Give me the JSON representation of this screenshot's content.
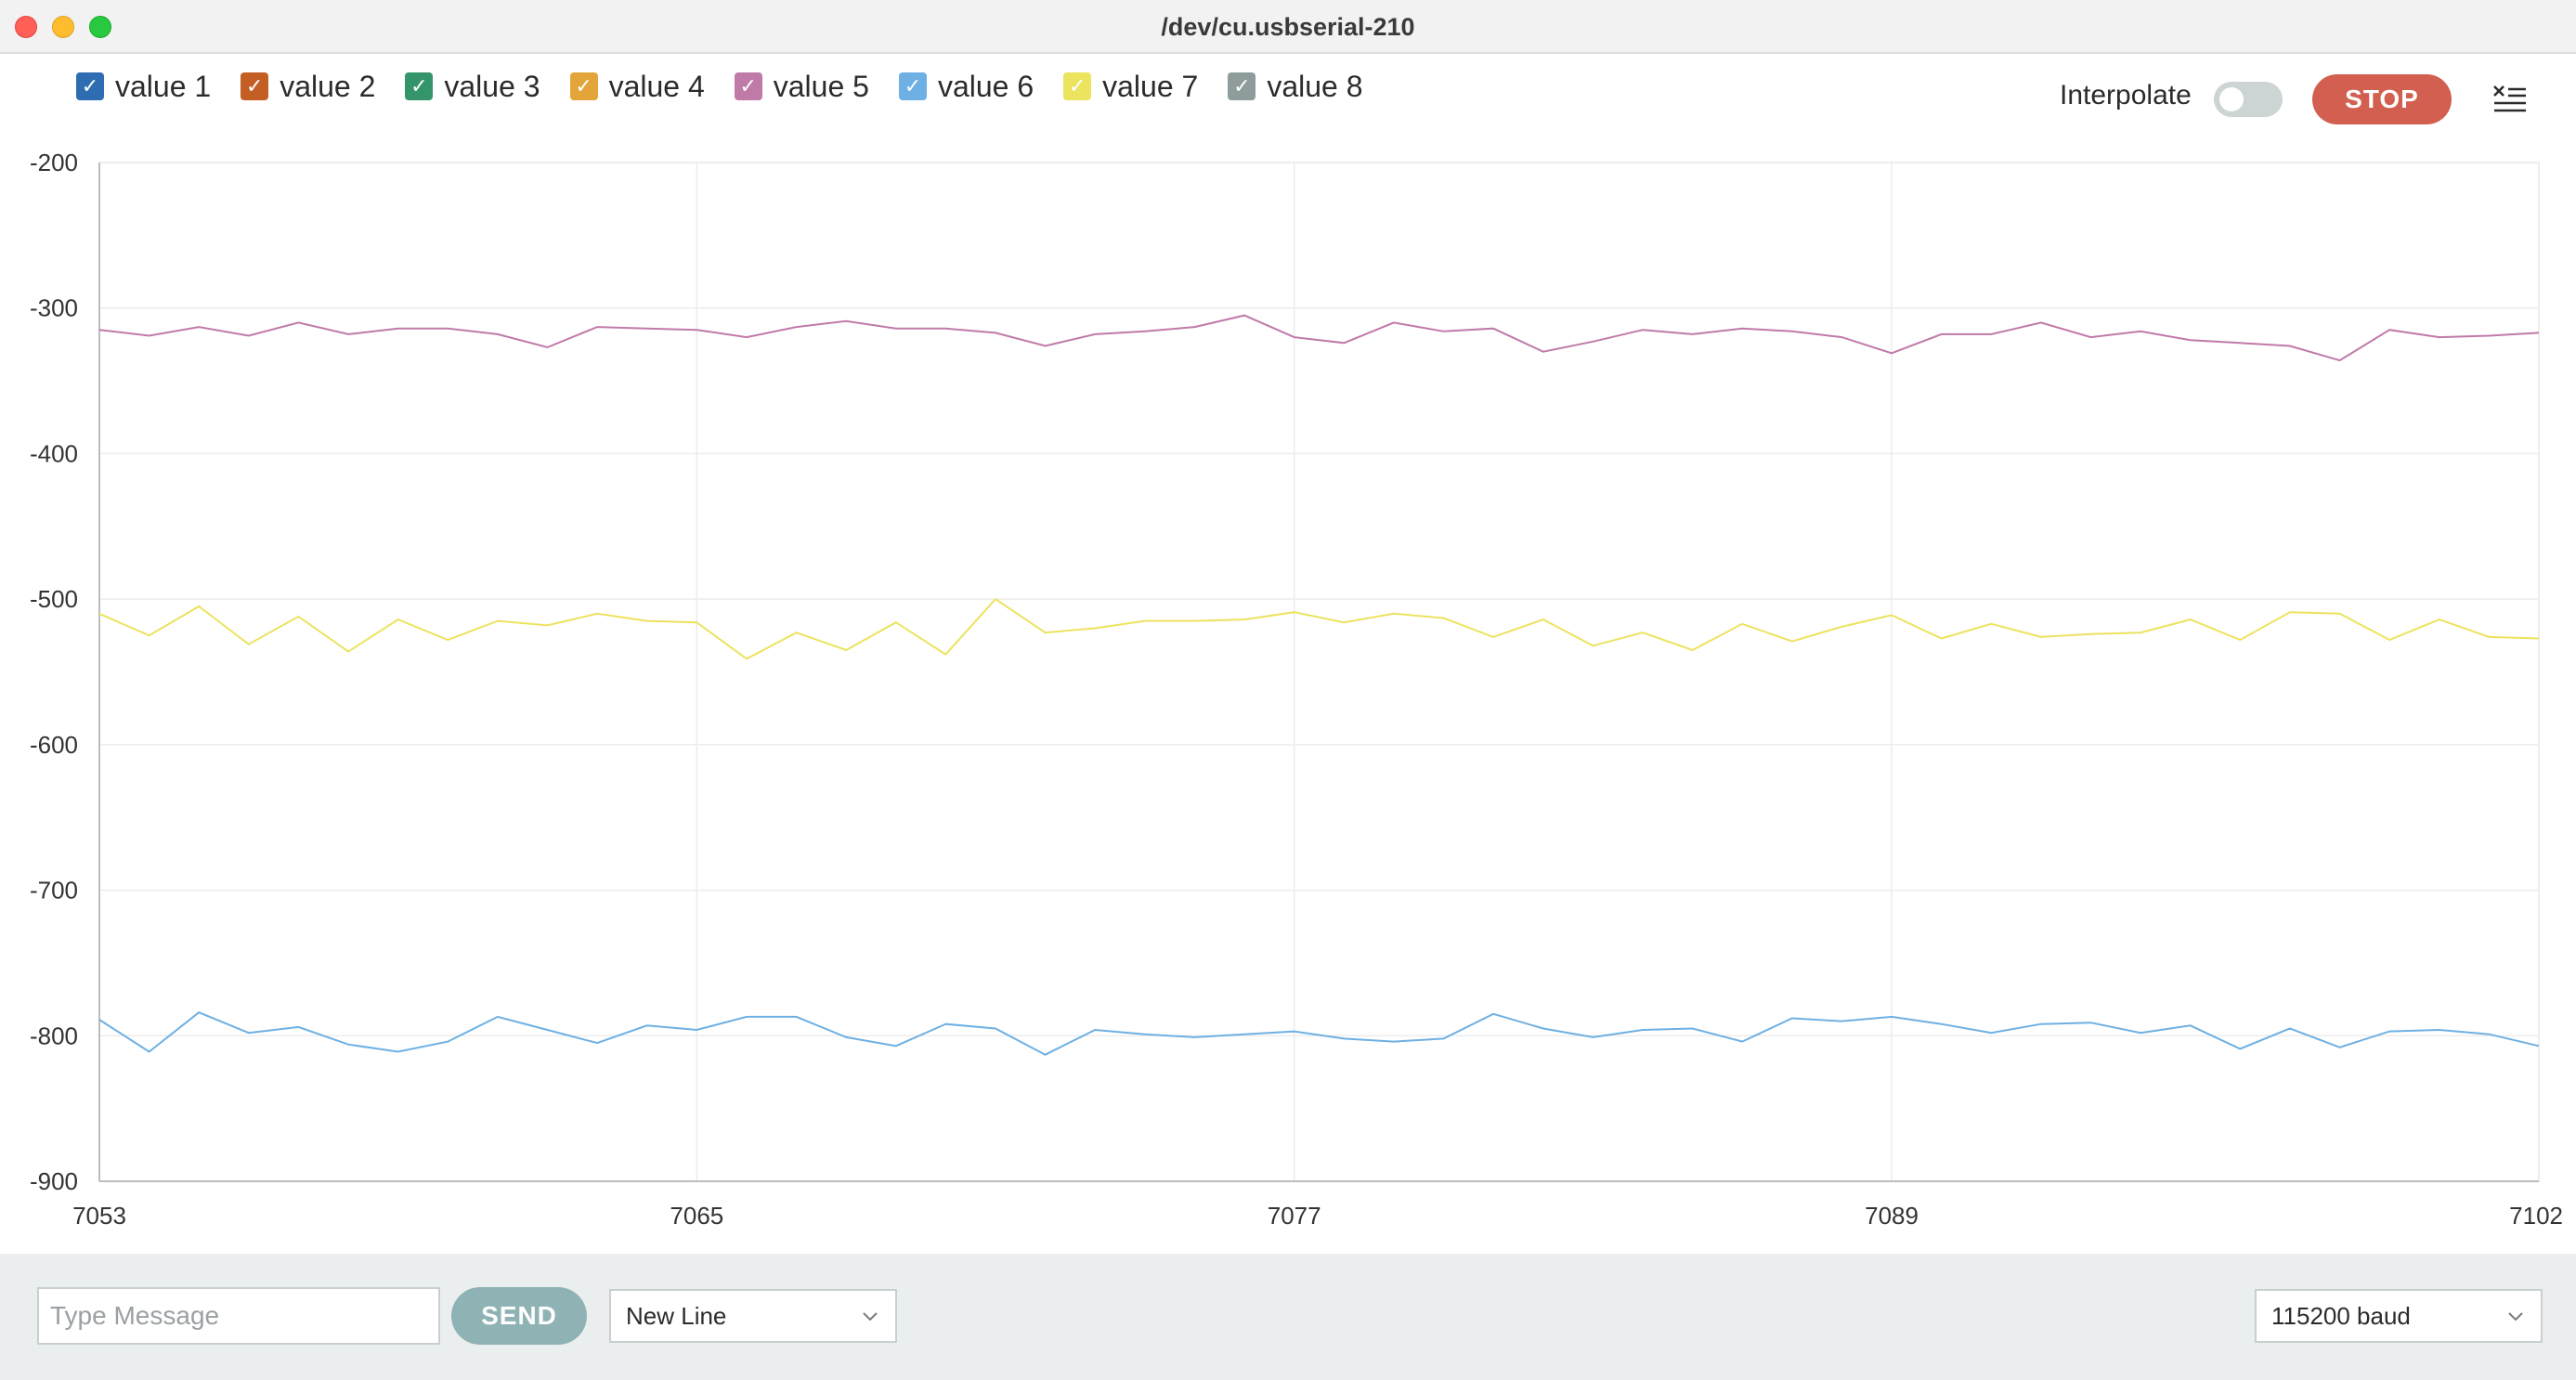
{
  "window": {
    "title": "/dev/cu.usbserial-210"
  },
  "legend": {
    "items": [
      {
        "label": "value 1",
        "color": "#2e6db1"
      },
      {
        "label": "value 2",
        "color": "#c35f25"
      },
      {
        "label": "value 3",
        "color": "#34956a"
      },
      {
        "label": "value 4",
        "color": "#e3a53a"
      },
      {
        "label": "value 5",
        "color": "#c07aa8"
      },
      {
        "label": "value 6",
        "color": "#6eb0e3"
      },
      {
        "label": "value 7",
        "color": "#ece35f"
      },
      {
        "label": "value 8",
        "color": "#8f9c9c"
      }
    ],
    "check_glyph": "✓"
  },
  "toolbar": {
    "interpolate_label": "Interpolate",
    "interpolate_on": false,
    "stop_label": "STOP",
    "clear_icon": "clear-output-icon"
  },
  "footer": {
    "message_placeholder": "Type Message",
    "send_label": "SEND",
    "line_ending": "New Line",
    "baud_rate": "115200 baud"
  },
  "chart_data": {
    "type": "line",
    "title": "",
    "xlabel": "",
    "ylabel": "",
    "xlim": [
      7053,
      7102
    ],
    "ylim": [
      -900,
      -200
    ],
    "x_ticks": [
      7053,
      7065,
      7077,
      7089,
      7102
    ],
    "y_ticks": [
      -200,
      -300,
      -400,
      -500,
      -600,
      -700,
      -800,
      -900
    ],
    "grid": true,
    "series": [
      {
        "name": "value 5",
        "color": "#c07aa8",
        "values": [
          -315,
          -319,
          -313,
          -319,
          -310,
          -318,
          -314,
          -314,
          -318,
          -327,
          -313,
          -314,
          -315,
          -320,
          -313,
          -309,
          -314,
          -314,
          -317,
          -326,
          -318,
          -316,
          -313,
          -305,
          -320,
          -324,
          -310,
          -316,
          -314,
          -330,
          -323,
          -315,
          -318,
          -314,
          -316,
          -320,
          -331,
          -318,
          -318,
          -310,
          -320,
          -316,
          -322,
          -324,
          -326,
          -336,
          -315,
          -320,
          -319,
          -317
        ]
      },
      {
        "name": "value 7",
        "color": "#ece35f",
        "values": [
          -510,
          -525,
          -505,
          -531,
          -512,
          -536,
          -514,
          -528,
          -515,
          -518,
          -510,
          -515,
          -516,
          -541,
          -523,
          -535,
          -516,
          -538,
          -500,
          -523,
          -520,
          -515,
          -515,
          -514,
          -509,
          -516,
          -510,
          -513,
          -526,
          -514,
          -532,
          -523,
          -535,
          -517,
          -529,
          -519,
          -511,
          -527,
          -517,
          -526,
          -524,
          -523,
          -514,
          -528,
          -509,
          -510,
          -528,
          -514,
          -526,
          -527
        ]
      },
      {
        "name": "value 6",
        "color": "#6eb0e3",
        "values": [
          -789,
          -811,
          -784,
          -798,
          -794,
          -806,
          -811,
          -804,
          -787,
          -796,
          -805,
          -793,
          -796,
          -787,
          -787,
          -801,
          -807,
          -792,
          -795,
          -813,
          -796,
          -799,
          -801,
          -799,
          -797,
          -802,
          -804,
          -802,
          -785,
          -795,
          -801,
          -796,
          -795,
          -804,
          -788,
          -790,
          -787,
          -792,
          -798,
          -792,
          -791,
          -798,
          -793,
          -809,
          -795,
          -808,
          -797,
          -796,
          -799,
          -807
        ]
      }
    ]
  }
}
